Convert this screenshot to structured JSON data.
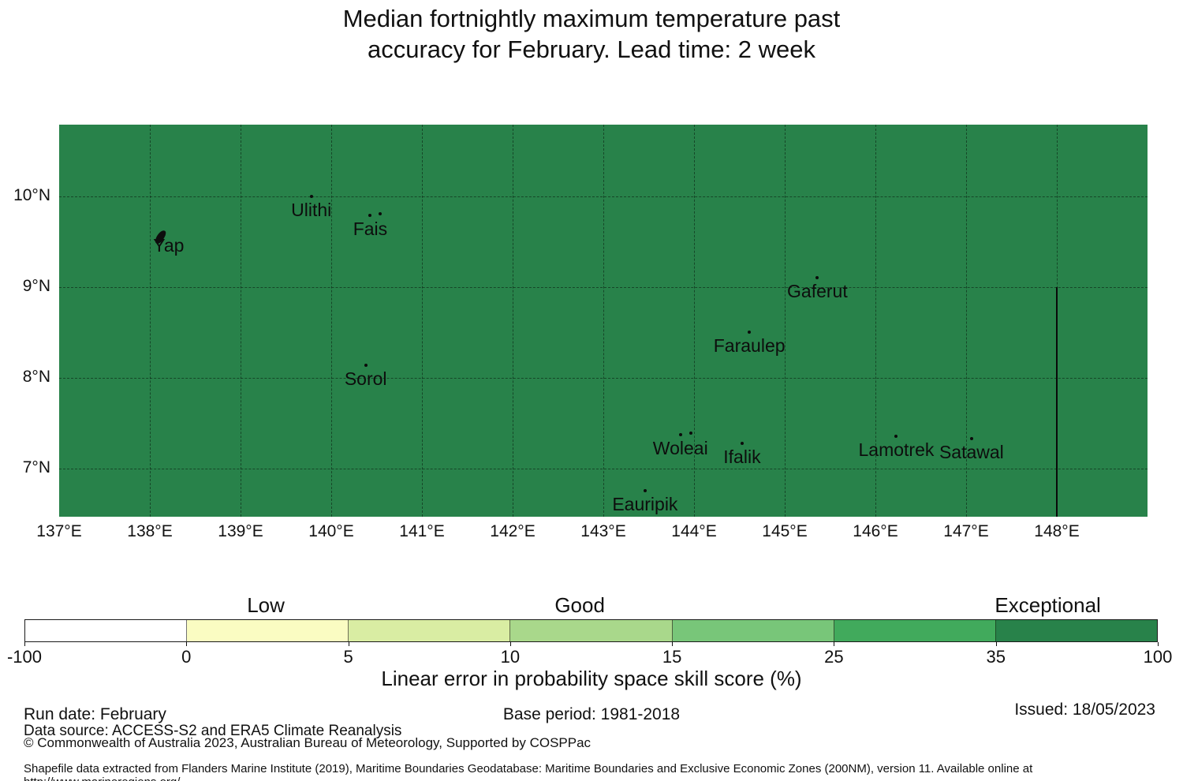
{
  "title": {
    "line1": "Median fortnightly maximum temperature past",
    "line2": "accuracy for February. Lead time: 2 week"
  },
  "chart_data": {
    "type": "map",
    "title": "Median fortnightly maximum temperature past accuracy for February. Lead time: 2 week",
    "region_color": "#28824a",
    "lon_range": [
      137.0,
      149.0
    ],
    "lat_range": [
      6.47,
      10.79
    ],
    "x_ticks": [
      {
        "value": 137,
        "label": "137°E"
      },
      {
        "value": 138,
        "label": "138°E"
      },
      {
        "value": 139,
        "label": "139°E"
      },
      {
        "value": 140,
        "label": "140°E"
      },
      {
        "value": 141,
        "label": "141°E"
      },
      {
        "value": 142,
        "label": "142°E"
      },
      {
        "value": 143,
        "label": "143°E"
      },
      {
        "value": 144,
        "label": "144°E"
      },
      {
        "value": 145,
        "label": "145°E"
      },
      {
        "value": 146,
        "label": "146°E"
      },
      {
        "value": 147,
        "label": "147°E"
      },
      {
        "value": 148,
        "label": "148°E"
      }
    ],
    "y_ticks": [
      {
        "value": 10,
        "label": "10°N"
      },
      {
        "value": 9,
        "label": "9°N"
      },
      {
        "value": 8,
        "label": "8°N"
      },
      {
        "value": 7,
        "label": "7°N"
      }
    ],
    "islands": [
      {
        "name": "Yap",
        "lon": 138.12,
        "lat": 9.55,
        "marker": "island"
      },
      {
        "name": "Ulithi",
        "lon": 139.78,
        "lat": 10.0,
        "marker": "dot"
      },
      {
        "name": "Fais",
        "lon": 140.43,
        "lat": 9.79,
        "marker": "dot2"
      },
      {
        "name": "Sorol",
        "lon": 140.38,
        "lat": 8.14,
        "marker": "dot"
      },
      {
        "name": "Gaferut",
        "lon": 145.36,
        "lat": 9.1,
        "marker": "dot"
      },
      {
        "name": "Faraulep",
        "lon": 144.61,
        "lat": 8.5,
        "marker": "dot"
      },
      {
        "name": "Woleai",
        "lon": 143.85,
        "lat": 7.37,
        "marker": "dot2"
      },
      {
        "name": "Ifalik",
        "lon": 144.53,
        "lat": 7.28,
        "marker": "dot"
      },
      {
        "name": "Lamotrek",
        "lon": 146.23,
        "lat": 7.36,
        "marker": "dot"
      },
      {
        "name": "Satawal",
        "lon": 147.06,
        "lat": 7.33,
        "marker": "dot"
      },
      {
        "name": "Eauripik",
        "lon": 143.46,
        "lat": 6.76,
        "marker": "dot"
      }
    ],
    "eez_boundary": {
      "lon": 148.0,
      "lat_from": 6.47,
      "lat_to": 9.0
    },
    "colorbar": {
      "categories": [
        {
          "label": "Low",
          "position_pct": 21.3
        },
        {
          "label": "Good",
          "position_pct": 49.0
        },
        {
          "label": "Exceptional",
          "position_pct": 90.3
        }
      ],
      "ticks": [
        "-100",
        "0",
        "5",
        "10",
        "15",
        "25",
        "35",
        "100"
      ],
      "segment_colors": [
        "#ffffff",
        "#fafcc2",
        "#d9eda3",
        "#a9d88b",
        "#78c679",
        "#41aa5c",
        "#28824a"
      ],
      "xlabel": "Linear error in probability space skill score (%)"
    }
  },
  "footer": {
    "run_date": "Run date: February",
    "base_period": "Base period: 1981-2018",
    "issued": "Issued: 18/05/2023",
    "data_source": "Data source: ACCESS-S2 and ERA5 Climate Reanalysis",
    "copyright": "© Commonwealth of Australia 2023, Australian Bureau of Meteorology, Supported by COSPPac",
    "shapefile_note": "Shapefile data extracted from Flanders Marine Institute (2019), Maritime Boundaries Geodatabase: Maritime Boundaries and Exclusive Economic Zones (200NM), version 11. Available online at http://www.marineregions.org/."
  }
}
